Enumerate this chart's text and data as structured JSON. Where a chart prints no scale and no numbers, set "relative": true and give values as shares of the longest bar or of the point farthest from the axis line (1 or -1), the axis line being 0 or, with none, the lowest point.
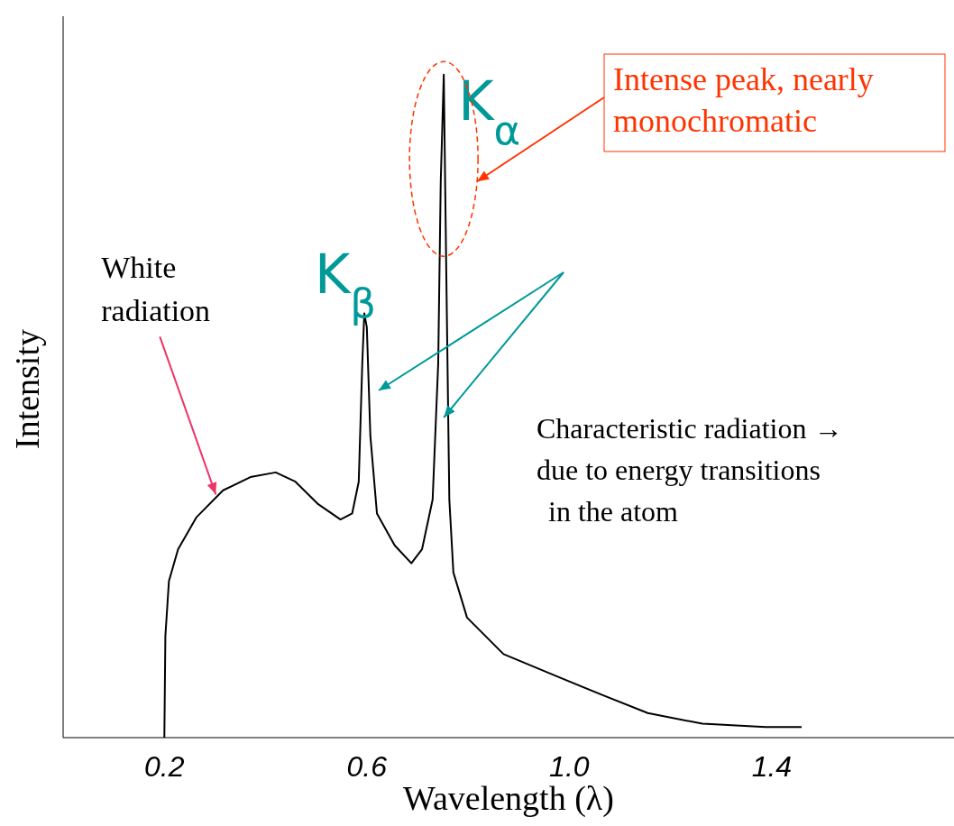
{
  "chart_data": {
    "type": "line",
    "relative": true,
    "xlabel": "Wavelength (λ)",
    "ylabel": "Intensity",
    "xlim": [
      0,
      1.76
    ],
    "xticks": [
      0.2,
      0.6,
      {
        "value": 1,
        "label": "1.0"
      },
      1.4
    ],
    "color": "#000000",
    "line_style": "solid",
    "x": [
      0.2,
      0.202,
      0.209,
      0.227,
      0.263,
      0.316,
      0.37,
      0.42,
      0.459,
      0.504,
      0.548,
      0.571,
      0.584,
      0.591,
      0.595,
      0.6,
      0.607,
      0.62,
      0.655,
      0.688,
      0.709,
      0.73,
      0.741,
      0.746,
      0.752,
      0.757,
      0.763,
      0.771,
      0.798,
      0.87,
      0.977,
      1.066,
      1.155,
      1.263,
      1.388,
      1.459
    ],
    "values": [
      0,
      0.153,
      0.236,
      0.284,
      0.332,
      0.373,
      0.393,
      0.4,
      0.386,
      0.352,
      0.329,
      0.338,
      0.386,
      0.564,
      0.64,
      0.619,
      0.455,
      0.338,
      0.29,
      0.263,
      0.284,
      0.359,
      0.564,
      0.838,
      1,
      0.701,
      0.359,
      0.249,
      0.181,
      0.126,
      0.092,
      0.064,
      0.037,
      0.021,
      0.016,
      0.016
    ],
    "annotations": [
      "White radiation",
      {
        "text": "K$_{β}$",
        "x": 0.595,
        "y": 0.64
      },
      {
        "text": "K$_{α}$",
        "x": 0.752,
        "y": 1
      },
      "Intense peak, nearly monochromatic",
      "Characteristic radiation → due to energy transitions in the atom"
    ]
  }
}
